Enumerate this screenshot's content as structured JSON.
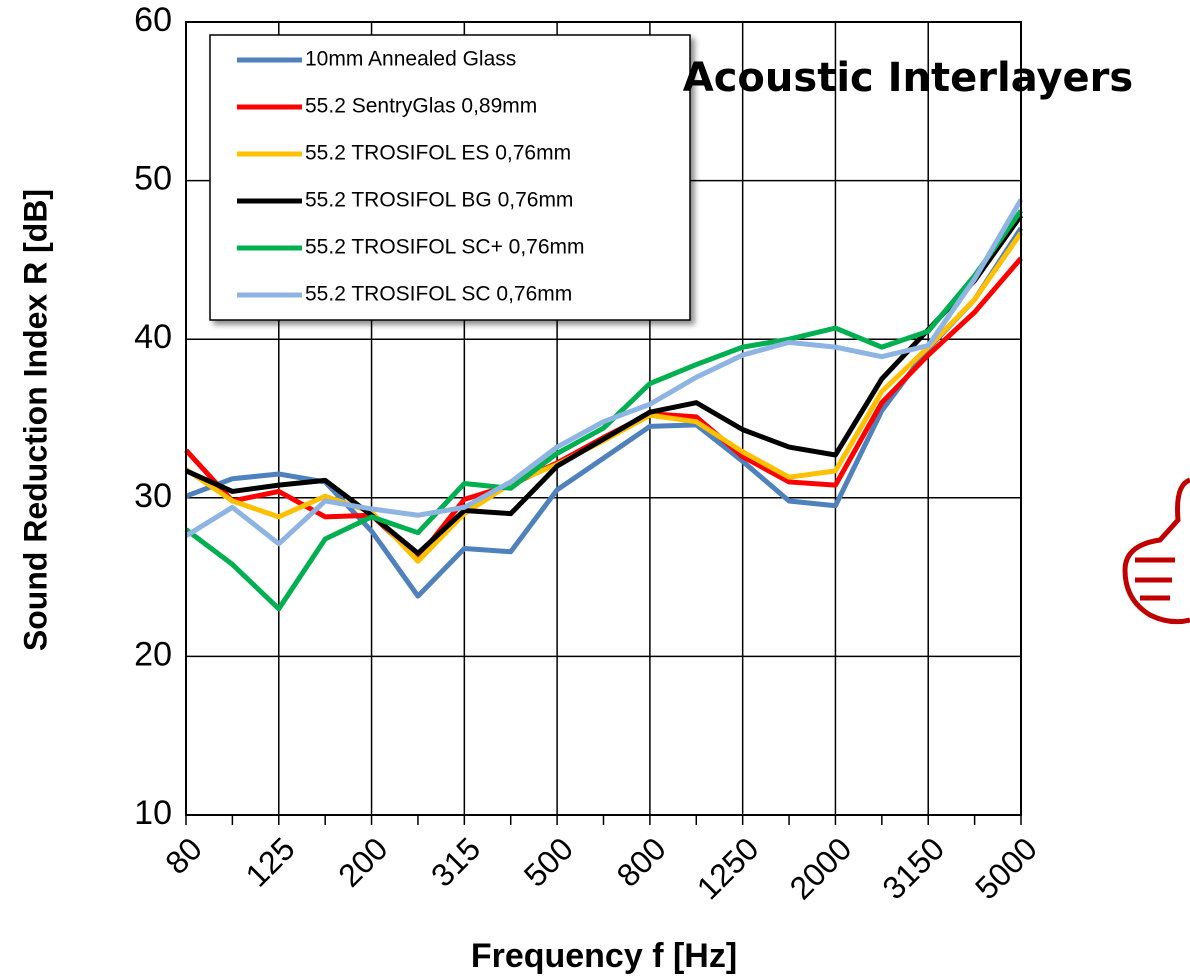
{
  "chart_data": {
    "type": "line",
    "title": "Acoustic Interlayers",
    "x_label": "Frequency f [Hz]",
    "y_label": "Sound Reduction Index R [dB]",
    "categories": [
      "80",
      null,
      "125",
      null,
      "200",
      null,
      "315",
      null,
      "500",
      null,
      "800",
      null,
      "1250",
      null,
      "2000",
      null,
      "3150",
      null,
      "5000"
    ],
    "ylim": [
      10,
      60
    ],
    "yticks": [
      10,
      20,
      30,
      40,
      50,
      60
    ],
    "grid": true,
    "legend": "upper left",
    "series": [
      {
        "name": "10mm Annealed Glass",
        "color": "#4f81bd",
        "values": [
          30.1,
          31.2,
          31.5,
          31.0,
          27.9,
          23.8,
          26.8,
          26.6,
          30.5,
          32.5,
          34.5,
          34.6,
          32.3,
          29.8,
          29.5,
          35.5,
          39.4,
          42.5,
          47.0
        ]
      },
      {
        "name": "55.2 SentryGlas 0,89mm",
        "color": "#ff0000",
        "values": [
          33.0,
          29.8,
          30.4,
          28.8,
          28.9,
          26.2,
          29.9,
          30.8,
          32.2,
          33.8,
          35.3,
          35.1,
          32.6,
          31.0,
          30.8,
          36.0,
          39.0,
          41.7,
          45.1
        ]
      },
      {
        "name": "55.2 TROSIFOL ES 0,76mm",
        "color": "#ffc000",
        "values": [
          31.8,
          29.8,
          28.8,
          30.1,
          29.1,
          26.0,
          29.0,
          30.9,
          32.1,
          33.6,
          35.2,
          34.8,
          32.9,
          31.3,
          31.7,
          36.7,
          39.5,
          42.5,
          46.7
        ]
      },
      {
        "name": "55.2 TROSIFOL BG 0,76mm",
        "color": "#000000",
        "values": [
          31.7,
          30.4,
          30.8,
          31.1,
          28.9,
          26.5,
          29.2,
          29.0,
          32.0,
          33.7,
          35.4,
          36.0,
          34.3,
          33.2,
          32.7,
          37.5,
          40.6,
          43.7,
          47.8
        ]
      },
      {
        "name": "55.2 TROSIFOL SC+ 0,76mm",
        "color": "#00b050",
        "values": [
          28.0,
          25.8,
          23.0,
          27.4,
          28.8,
          27.8,
          30.9,
          30.6,
          32.8,
          34.4,
          37.2,
          38.4,
          39.5,
          40.0,
          40.7,
          39.5,
          40.5,
          44.0,
          48.1
        ]
      },
      {
        "name": "55.2 TROSIFOL SC 0,76mm",
        "color": "#8db4e2",
        "values": [
          27.6,
          29.4,
          27.1,
          29.8,
          29.3,
          28.9,
          29.4,
          31.0,
          33.2,
          34.8,
          35.9,
          37.6,
          39.0,
          39.8,
          39.5,
          38.9,
          39.6,
          43.8,
          48.8
        ]
      }
    ]
  }
}
